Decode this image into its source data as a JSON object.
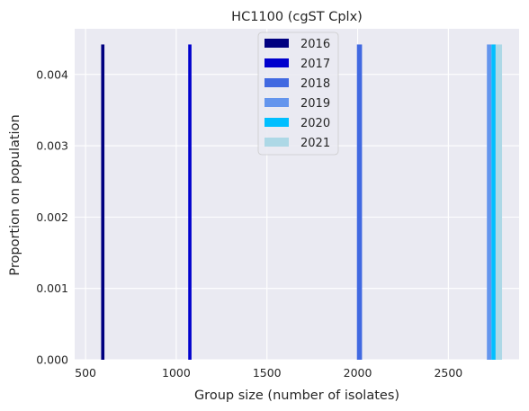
{
  "chart_data": {
    "type": "bar",
    "title": "HC1100 (cgST Cplx)",
    "xlabel": "Group size (number of isolates)",
    "ylabel": "Proportion on population",
    "xlim": [
      440,
      2890
    ],
    "ylim": [
      0,
      0.00464
    ],
    "x_ticks": [
      "500",
      "1000",
      "1500",
      "2000",
      "2500"
    ],
    "x_tick_values": [
      500,
      1000,
      1500,
      2000,
      2500
    ],
    "y_ticks": [
      "0.000",
      "0.001",
      "0.002",
      "0.003",
      "0.004"
    ],
    "y_tick_values": [
      0,
      0.001,
      0.002,
      0.003,
      0.004
    ],
    "grid": true,
    "legend_position": "top-center",
    "series": [
      {
        "name": "2016",
        "color": "#000080",
        "x": 595,
        "width": 18,
        "value": 0.00442
      },
      {
        "name": "2017",
        "color": "#0000cd",
        "x": 1075,
        "width": 18,
        "value": 0.00442
      },
      {
        "name": "2018",
        "color": "#4169e1",
        "x": 2010,
        "width": 28,
        "value": 0.00442
      },
      {
        "name": "2019",
        "color": "#6495ed",
        "x": 2725,
        "width": 25,
        "value": 0.00442
      },
      {
        "name": "2020",
        "color": "#00bfff",
        "x": 2750,
        "width": 25,
        "value": 0.00442
      },
      {
        "name": "2021",
        "color": "#add8e6",
        "x": 2778,
        "width": 36,
        "value": 0.00442
      }
    ],
    "colors": {
      "plot_bg": "#eaeaf2",
      "grid": "#ffffff",
      "text": "#262626"
    }
  }
}
